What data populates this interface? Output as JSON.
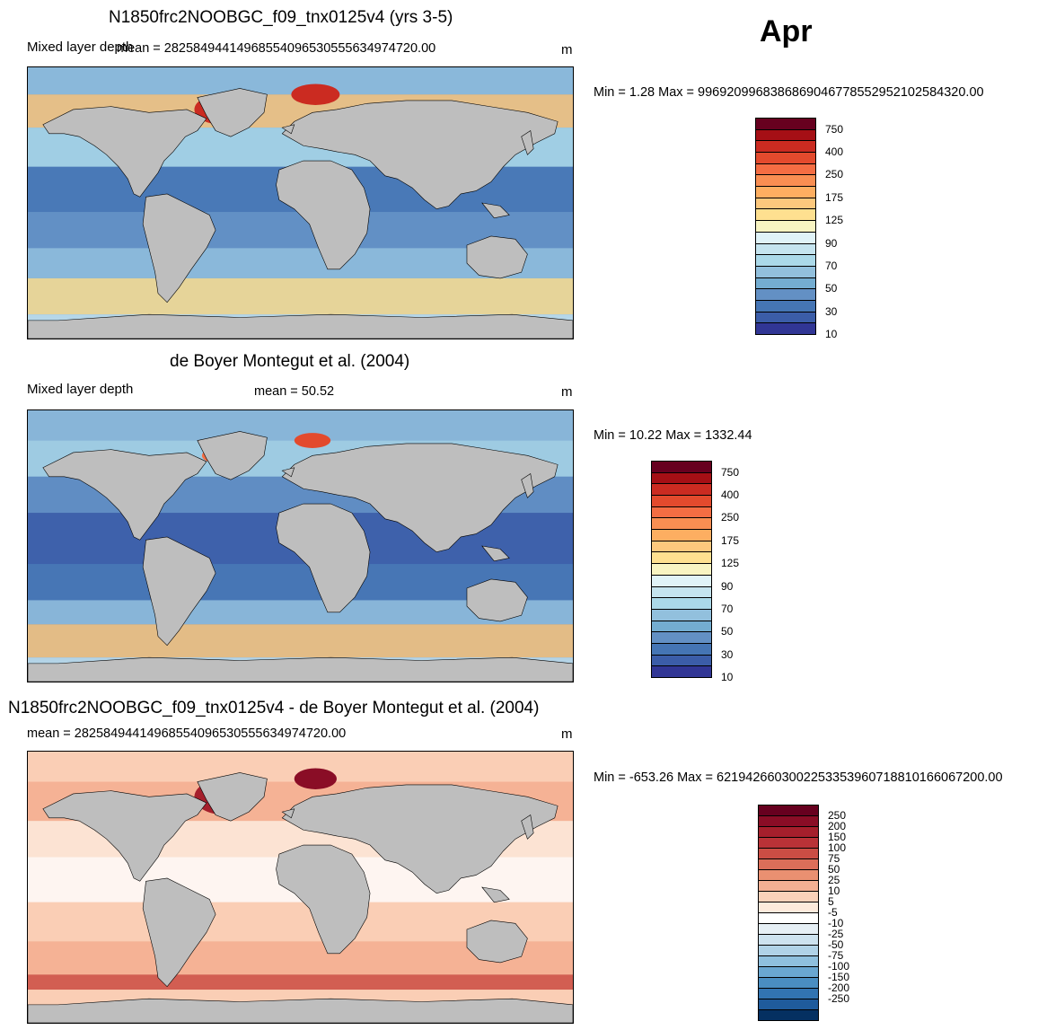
{
  "month": "Apr",
  "panels": [
    {
      "id": "model",
      "title": "N1850frc2NOOBGC_f09_tnx0125v4 (yrs 3-5)",
      "variable": "Mixed layer depth",
      "mean_text": "mean = 282584944149685540965305556349747​20.00",
      "units": "m",
      "minmax_text": "Min =   1.28 Max = 996920996838686904677855295210258​4320.00",
      "ocean_color": "#5e8fc5",
      "colorbar": {
        "labels": [
          "750",
          "400",
          "250",
          "175",
          "125",
          "90",
          "70",
          "50",
          "30",
          "10"
        ],
        "colors": [
          "#67001f",
          "#a50f15",
          "#cb2b21",
          "#e34a2d",
          "#f46d43",
          "#f98e52",
          "#fdae61",
          "#fdc87d",
          "#fee090",
          "#f8f4c2",
          "#e0f3f8",
          "#c5e4ef",
          "#abd9e9",
          "#92c0dd",
          "#74add1",
          "#6390c4",
          "#4575b4",
          "#3b5da8",
          "#313695"
        ]
      }
    },
    {
      "id": "obs",
      "title": "de Boyer Montegut et al. (2004)",
      "variable": "Mixed layer depth",
      "mean_text": "mean =  50.52",
      "units": "m",
      "minmax_text": "Min =  10.22 Max = 1332.44",
      "ocean_color": "#4f7cbd",
      "colorbar": {
        "labels": [
          "750",
          "400",
          "250",
          "175",
          "125",
          "90",
          "70",
          "50",
          "30",
          "10"
        ],
        "colors": [
          "#67001f",
          "#a50f15",
          "#cb2b21",
          "#e34a2d",
          "#f46d43",
          "#f98e52",
          "#fdae61",
          "#fdc87d",
          "#fee090",
          "#f8f4c2",
          "#e0f3f8",
          "#c5e4ef",
          "#abd9e9",
          "#92c0dd",
          "#74add1",
          "#6390c4",
          "#4575b4",
          "#3b5da8",
          "#313695"
        ]
      }
    },
    {
      "id": "diff",
      "title": "N1850frc2NOOBGC_f09_tnx0125v4 - de Boyer Montegut et al. (2004)",
      "variable": "",
      "mean_text": "mean = 282584944149685540965305556349747​20.00",
      "units": "m",
      "minmax_text": "Min = -653.26 Max = 621942660300225335396071881016606​7200.00",
      "ocean_color": "#f4b9a0",
      "colorbar": {
        "labels": [
          "250",
          "200",
          "150",
          "100",
          "75",
          "50",
          "25",
          "10",
          "5",
          "-5",
          "-10",
          "-25",
          "-50",
          "-75",
          "-100",
          "-150",
          "-200",
          "-250"
        ],
        "colors": [
          "#67001f",
          "#8a0d26",
          "#a51f2c",
          "#b93237",
          "#cb4d44",
          "#dc6e59",
          "#ea9071",
          "#f4b093",
          "#fad1b9",
          "#fdeadc",
          "#ffffff",
          "#e6eff5",
          "#cde2ef",
          "#b0d2e7",
          "#8fc0de",
          "#6aa7d1",
          "#4a8ec2",
          "#3274b1",
          "#1f5b9c",
          "#053061"
        ]
      }
    }
  ]
}
